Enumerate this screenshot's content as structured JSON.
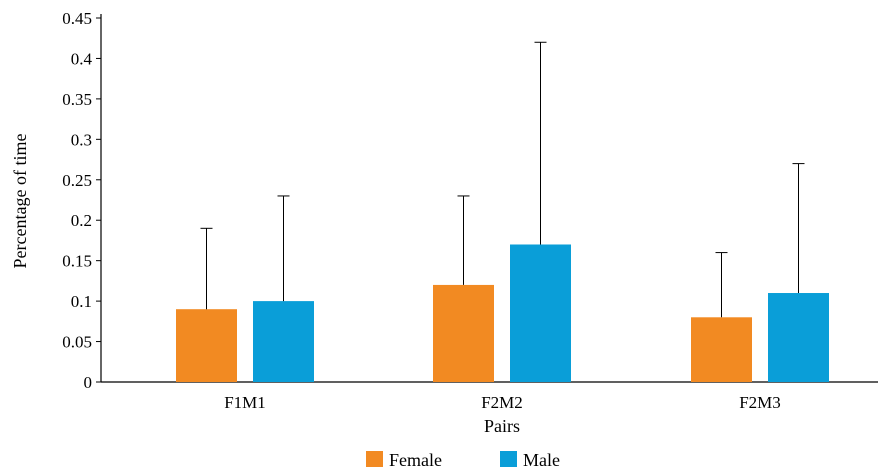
{
  "chart_data": {
    "type": "bar",
    "categories": [
      "F1M1",
      "F2M2",
      "F2M3"
    ],
    "series": [
      {
        "name": "Female",
        "values": [
          0.09,
          0.12,
          0.08
        ],
        "error_upper": [
          0.19,
          0.23,
          0.16
        ],
        "color": "#f28a22"
      },
      {
        "name": "Male",
        "values": [
          0.1,
          0.17,
          0.11
        ],
        "error_upper": [
          0.23,
          0.42,
          0.27
        ],
        "color": "#0a9ed8"
      }
    ],
    "title": "",
    "xlabel": "Pairs",
    "ylabel": "Percentage of time",
    "ylim": [
      0,
      0.45
    ],
    "yticks": [
      "0",
      "0.05",
      "0.1",
      "0.15",
      "0.2",
      "0.25",
      "0.3",
      "0.35",
      "0.4",
      "0.45"
    ],
    "grid": false,
    "legend_position": "bottom"
  }
}
